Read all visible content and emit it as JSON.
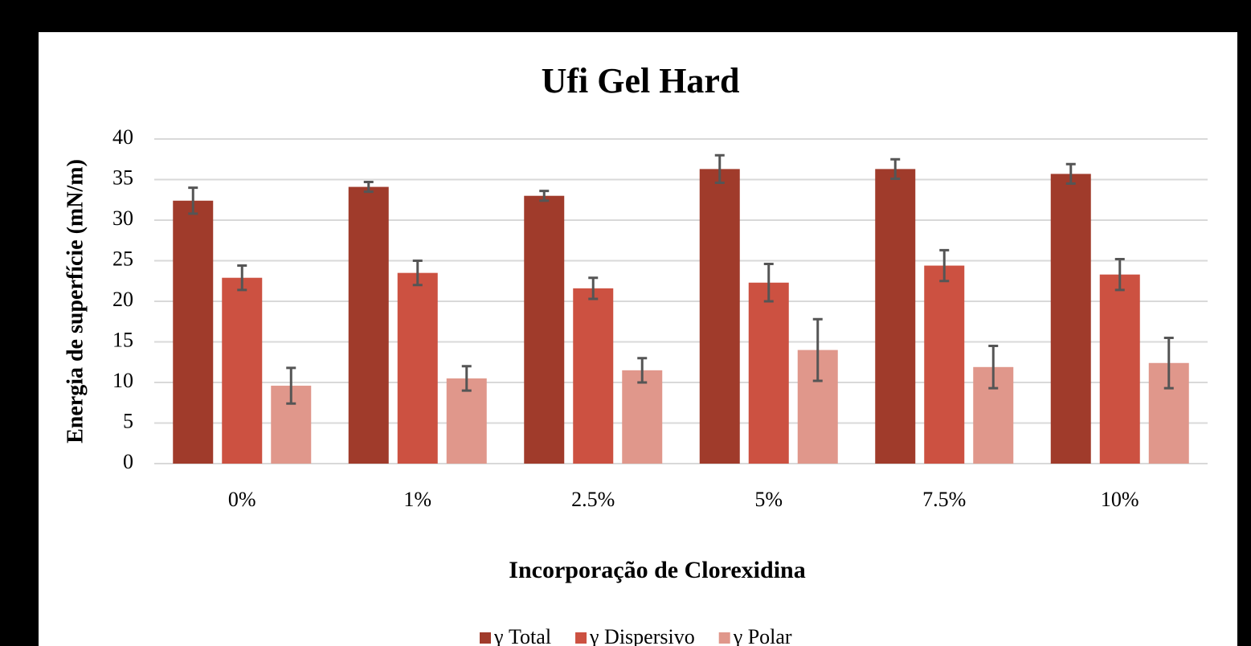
{
  "chart_data": {
    "type": "bar",
    "title": "Ufi Gel Hard",
    "ylabel": "Energia de superfície (mN/m)",
    "xlabel": "Incorporação de Clorexidina",
    "categories": [
      "0%",
      "1%",
      "2.5%",
      "5%",
      "7.5%",
      "10%"
    ],
    "series": [
      {
        "name": "γ Total",
        "color": "#a03b2b",
        "values": [
          32.4,
          34.1,
          33.0,
          36.3,
          36.3,
          35.7
        ],
        "errors": [
          1.6,
          0.6,
          0.6,
          1.7,
          1.2,
          1.2
        ]
      },
      {
        "name": "γ Dispersivo",
        "color": "#cc5141",
        "values": [
          22.9,
          23.5,
          21.6,
          22.3,
          24.4,
          23.3
        ],
        "errors": [
          1.5,
          1.5,
          1.3,
          2.3,
          1.9,
          1.9
        ]
      },
      {
        "name": "γ Polar",
        "color": "#e0978b",
        "values": [
          9.6,
          10.5,
          11.5,
          14.0,
          11.9,
          12.4
        ],
        "errors": [
          2.2,
          1.5,
          1.5,
          3.8,
          2.6,
          3.1
        ]
      }
    ],
    "ylim": [
      0,
      40
    ],
    "yticks": [
      0,
      5,
      10,
      15,
      20,
      25,
      30,
      35,
      40
    ],
    "grid": true,
    "legend": "bottom"
  }
}
